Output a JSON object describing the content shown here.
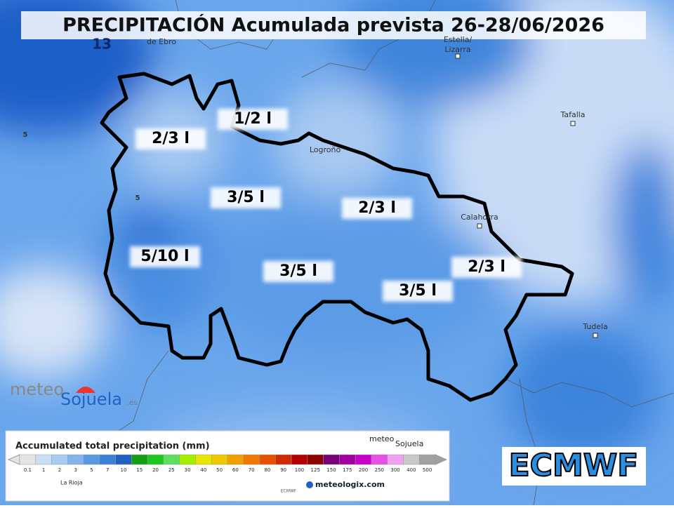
{
  "header": {
    "title": "PRECIPITACIÓN Acumulada prevista 26-28/06/2026"
  },
  "places": [
    "de Ebro",
    "Estella/",
    "Lizarra",
    "Tafalla",
    "Logroño",
    "Calahorra",
    "Tudela"
  ],
  "contours": [
    "13",
    "5",
    "5"
  ],
  "zones": [
    "1/2 l",
    "2/3 l",
    "3/5 l",
    "2/3 l",
    "5/10 l",
    "3/5 l",
    "3/5 l",
    "2/3 l"
  ],
  "legend": {
    "title": "Accumulated total precipitation (mm)",
    "ticks": [
      0.1,
      1,
      2,
      3,
      5,
      7,
      10,
      15,
      20,
      25,
      30,
      40,
      50,
      60,
      70,
      80,
      90,
      100,
      125,
      150,
      175,
      200,
      250,
      300,
      400,
      500
    ],
    "colors": [
      "#e4e4e4",
      "#c9ddf6",
      "#aacbf0",
      "#82b3ea",
      "#5a98e3",
      "#3c80d8",
      "#2060c0",
      "#12a012",
      "#1cc81c",
      "#5ee05e",
      "#a4f000",
      "#e6e600",
      "#f0c800",
      "#f0a000",
      "#f07800",
      "#e65000",
      "#d22800",
      "#b40000",
      "#8c0000",
      "#780078",
      "#a000a0",
      "#c800c8",
      "#e650e6",
      "#f0a0f0",
      "#c8c8c8",
      "#a0a0a0"
    ],
    "region": "La Rioja",
    "brand_meteo": "meteo",
    "brand_sojuela": "Sojuela",
    "provider": "ECMWF",
    "site": "meteologix.com"
  },
  "logo": {
    "meteo": "meteo",
    "sojuela": "Sojuela",
    "suffix": ".es"
  },
  "model": "ECMWF"
}
